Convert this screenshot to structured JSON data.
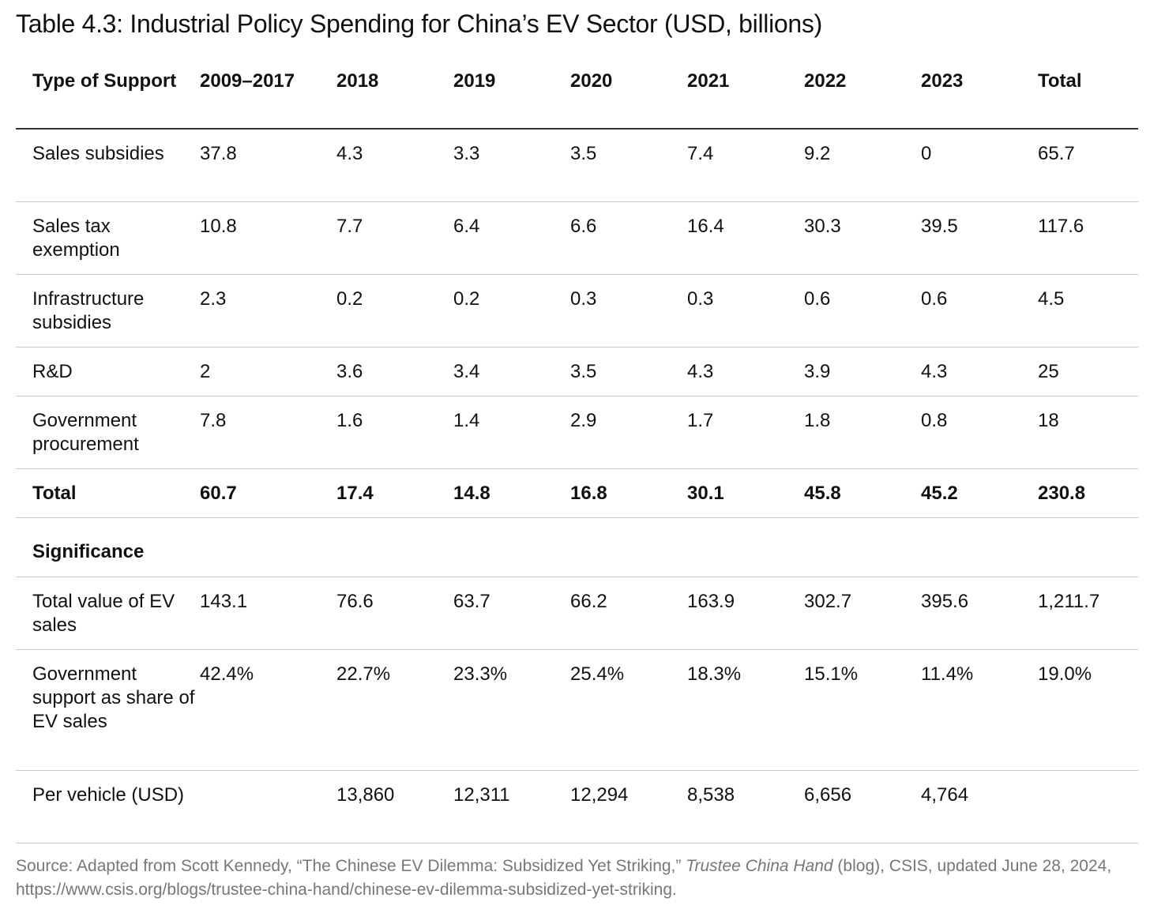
{
  "title": "Table 4.3: Industrial Policy Spending for China’s EV Sector (USD, billions)",
  "columns": [
    "Type of Support",
    "2009–2017",
    "2018",
    "2019",
    "2020",
    "2021",
    "2022",
    "2023",
    "Total"
  ],
  "rows": [
    {
      "label": "Sales subsidies",
      "values": [
        "37.8",
        "4.3",
        "3.3",
        "3.5",
        "7.4",
        "9.2",
        "0",
        "65.7"
      ]
    },
    {
      "label": "Sales tax exemption",
      "values": [
        "10.8",
        "7.7",
        "6.4",
        "6.6",
        "16.4",
        "30.3",
        "39.5",
        "117.6"
      ]
    },
    {
      "label": "Infrastructure subsidies",
      "values": [
        "2.3",
        "0.2",
        "0.2",
        "0.3",
        "0.3",
        "0.6",
        "0.6",
        "4.5"
      ]
    },
    {
      "label": "R&D",
      "values": [
        "2",
        "3.6",
        "3.4",
        "3.5",
        "4.3",
        "3.9",
        "4.3",
        "25"
      ]
    },
    {
      "label": "Government procurement",
      "values": [
        "7.8",
        "1.6",
        "1.4",
        "2.9",
        "1.7",
        "1.8",
        "0.8",
        "18"
      ]
    },
    {
      "label": "Total",
      "values": [
        "60.7",
        "17.4",
        "14.8",
        "16.8",
        "30.1",
        "45.8",
        "45.2",
        "230.8"
      ]
    },
    {
      "label": "Significance",
      "values": [
        "",
        "",
        "",
        "",
        "",
        "",
        "",
        ""
      ]
    },
    {
      "label": "Total value of EV sales",
      "values": [
        "143.1",
        "76.6",
        "63.7",
        "66.2",
        "163.9",
        "302.7",
        "395.6",
        "1,211.7"
      ]
    },
    {
      "label": "Government support as share of EV sales",
      "values": [
        "42.4%",
        "22.7%",
        "23.3%",
        "25.4%",
        "18.3%",
        "15.1%",
        "11.4%",
        "19.0%"
      ]
    },
    {
      "label": "Per vehicle (USD)",
      "values": [
        "",
        "13,860",
        "12,311",
        "12,294",
        "8,538",
        "6,656",
        "4,764",
        ""
      ]
    }
  ],
  "source": {
    "prefix": "Source: Adapted from Scott Kennedy, “The Chinese EV Dilemma: Subsidized Yet Striking,” ",
    "italic": "Trustee China Hand",
    "suffix": " (blog), CSIS, updated June 28, 2024, https://www.csis.org/blogs/trustee-china-hand/chinese-ev-dilemma-subsidized-yet-striking."
  }
}
